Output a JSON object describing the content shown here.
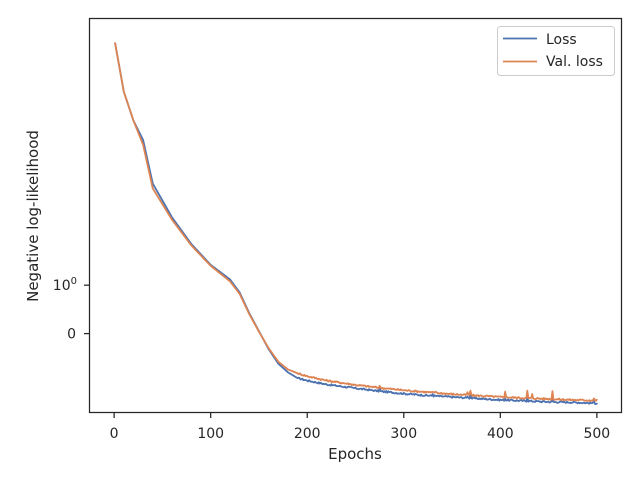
{
  "chart_data": {
    "type": "line",
    "xlabel": "Epochs",
    "ylabel": "Negative log-likelihood",
    "y_scale": "symlog",
    "xlim": [
      -25,
      525
    ],
    "ylim": [
      -1.62,
      6.5
    ],
    "x_ticks": [
      0,
      100,
      200,
      300,
      400,
      500
    ],
    "y_ticks": [
      {
        "value": 1.0,
        "base": "10",
        "exp": "0"
      },
      {
        "value": 0,
        "base": "0",
        "exp": ""
      }
    ],
    "grid": false,
    "legend_position": "top-right",
    "series": [
      {
        "name": "Loss",
        "color": "#4c72b0",
        "points": [
          [
            1,
            6.0
          ],
          [
            10,
            5.0
          ],
          [
            20,
            4.4
          ],
          [
            30,
            4.0
          ],
          [
            40,
            3.1
          ],
          [
            60,
            2.4
          ],
          [
            80,
            1.85
          ],
          [
            100,
            1.42
          ],
          [
            120,
            1.12
          ],
          [
            130,
            0.85
          ],
          [
            140,
            0.42
          ],
          [
            150,
            0.05
          ],
          [
            160,
            -0.32
          ],
          [
            170,
            -0.62
          ],
          [
            180,
            -0.8
          ],
          [
            190,
            -0.92
          ],
          [
            200,
            -0.97
          ],
          [
            220,
            -1.05
          ],
          [
            250,
            -1.13
          ],
          [
            275,
            -1.19
          ],
          [
            300,
            -1.24
          ],
          [
            325,
            -1.28
          ],
          [
            350,
            -1.31
          ],
          [
            375,
            -1.34
          ],
          [
            400,
            -1.37
          ],
          [
            425,
            -1.39
          ],
          [
            450,
            -1.41
          ],
          [
            475,
            -1.42
          ],
          [
            500,
            -1.44
          ]
        ],
        "spikes": [
          [
            275,
            -1.13
          ],
          [
            330,
            -1.25
          ],
          [
            366,
            -1.3
          ],
          [
            369,
            -1.27
          ],
          [
            405,
            -1.34
          ],
          [
            428,
            -1.31
          ],
          [
            454,
            -1.34
          ],
          [
            497,
            -1.4
          ]
        ]
      },
      {
        "name": "Val. loss",
        "color": "#dd8452",
        "points": [
          [
            1,
            6.0
          ],
          [
            10,
            5.0
          ],
          [
            20,
            4.4
          ],
          [
            30,
            3.9
          ],
          [
            40,
            3.0
          ],
          [
            60,
            2.35
          ],
          [
            80,
            1.82
          ],
          [
            100,
            1.4
          ],
          [
            120,
            1.08
          ],
          [
            130,
            0.82
          ],
          [
            140,
            0.4
          ],
          [
            150,
            0.04
          ],
          [
            160,
            -0.3
          ],
          [
            170,
            -0.58
          ],
          [
            180,
            -0.74
          ],
          [
            190,
            -0.82
          ],
          [
            200,
            -0.88
          ],
          [
            220,
            -0.97
          ],
          [
            250,
            -1.06
          ],
          [
            275,
            -1.12
          ],
          [
            300,
            -1.17
          ],
          [
            325,
            -1.21
          ],
          [
            350,
            -1.25
          ],
          [
            375,
            -1.28
          ],
          [
            400,
            -1.31
          ],
          [
            425,
            -1.33
          ],
          [
            450,
            -1.35
          ],
          [
            475,
            -1.37
          ],
          [
            500,
            -1.38
          ]
        ],
        "spikes": [
          [
            275,
            -1.08
          ],
          [
            278,
            -1.12
          ],
          [
            333,
            -1.2
          ],
          [
            366,
            -1.21
          ],
          [
            369,
            -1.18
          ],
          [
            405,
            -1.2
          ],
          [
            428,
            -1.18
          ],
          [
            433,
            -1.25
          ],
          [
            454,
            -1.19
          ],
          [
            497,
            -1.34
          ]
        ]
      }
    ]
  }
}
